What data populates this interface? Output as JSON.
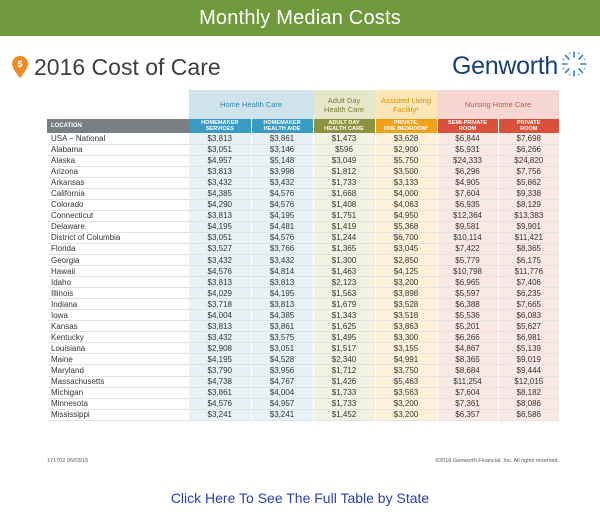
{
  "banner": {
    "title": "Monthly Median Costs"
  },
  "header": {
    "title": "2016 Cost of Care",
    "brand": "Genworth"
  },
  "table": {
    "groups": {
      "home": "Home Health Care",
      "adult": [
        "Adult Day",
        "Health Care"
      ],
      "assisted": [
        "Assisted Living",
        "Facility¹"
      ],
      "nursing": "Nursing Home Care"
    },
    "columns": {
      "location": "LOCATION",
      "homemaker": [
        "HOMEMAKER",
        "SERVICES"
      ],
      "aide": [
        "HOMEMAKER",
        "HEALTH AIDE"
      ],
      "adult": [
        "ADULT DAY",
        "HEALTH CARE"
      ],
      "assisted": [
        "PRIVATE,",
        "ONE BEDROOM¹"
      ],
      "semi": [
        "SEMI-PRIVATE",
        "ROOM"
      ],
      "private": [
        "PRIVATE",
        "ROOM"
      ]
    },
    "rows": [
      [
        "USA – National",
        "$3,813",
        "$3,861",
        "$1,473",
        "$3,628",
        "$6,844",
        "$7,698"
      ],
      [
        "Alabama",
        "$3,051",
        "$3,146",
        "$596",
        "$2,900",
        "$5,931",
        "$6,266"
      ],
      [
        "Alaska",
        "$4,957",
        "$5,148",
        "$3,049",
        "$5,750",
        "$24,333",
        "$24,820"
      ],
      [
        "Arizona",
        "$3,813",
        "$3,998",
        "$1,812",
        "$3,500",
        "$6,296",
        "$7,756"
      ],
      [
        "Arkansas",
        "$3,432",
        "$3,432",
        "$1,733",
        "$3,133",
        "$4,905",
        "$5,862"
      ],
      [
        "California",
        "$4,385",
        "$4,576",
        "$1,668",
        "$4,000",
        "$7,604",
        "$9,338"
      ],
      [
        "Colorado",
        "$4,290",
        "$4,576",
        "$1,408",
        "$4,063",
        "$6,935",
        "$8,129"
      ],
      [
        "Connecticut",
        "$3,813",
        "$4,195",
        "$1,751",
        "$4,950",
        "$12,364",
        "$13,383"
      ],
      [
        "Delaware",
        "$4,195",
        "$4,481",
        "$1,419",
        "$5,368",
        "$9,581",
        "$9,901"
      ],
      [
        "District of Columbia",
        "$3,051",
        "$4,576",
        "$1,244",
        "$6,700",
        "$10,114",
        "$11,421"
      ],
      [
        "Florida",
        "$3,527",
        "$3,766",
        "$1,365",
        "$3,045",
        "$7,422",
        "$8,365"
      ],
      [
        "Georgia",
        "$3,432",
        "$3,432",
        "$1,300",
        "$2,850",
        "$5,779",
        "$6,175"
      ],
      [
        "Hawaii",
        "$4,576",
        "$4,814",
        "$1,463",
        "$4,125",
        "$10,798",
        "$11,776"
      ],
      [
        "Idaho",
        "$3,813",
        "$3,813",
        "$2,123",
        "$3,200",
        "$6,965",
        "$7,406"
      ],
      [
        "Illinois",
        "$4,029",
        "$4,195",
        "$1,563",
        "$3,898",
        "$5,597",
        "$6,235"
      ],
      [
        "Indiana",
        "$3,718",
        "$3,813",
        "$1,679",
        "$3,528",
        "$6,388",
        "$7,665"
      ],
      [
        "Iowa",
        "$4,004",
        "$4,385",
        "$1,343",
        "$3,518",
        "$5,536",
        "$6,083"
      ],
      [
        "Kansas",
        "$3,813",
        "$3,861",
        "$1,625",
        "$3,863",
        "$5,201",
        "$5,627"
      ],
      [
        "Kentucky",
        "$3,432",
        "$3,575",
        "$1,495",
        "$3,300",
        "$6,266",
        "$6,981"
      ],
      [
        "Louisiana",
        "$2,908",
        "$3,051",
        "$1,517",
        "$3,155",
        "$4,867",
        "$5,139"
      ],
      [
        "Maine",
        "$4,195",
        "$4,528",
        "$2,340",
        "$4,991",
        "$8,365",
        "$9,019"
      ],
      [
        "Maryland",
        "$3,790",
        "$3,956",
        "$1,712",
        "$3,750",
        "$8,684",
        "$9,444"
      ],
      [
        "Massachusetts",
        "$4,738",
        "$4,767",
        "$1,426",
        "$5,463",
        "$11,254",
        "$12,015"
      ],
      [
        "Michigan",
        "$3,861",
        "$4,004",
        "$1,733",
        "$3,563",
        "$7,604",
        "$8,182"
      ],
      [
        "Minnesota",
        "$4,576",
        "$4,957",
        "$1,733",
        "$3,200",
        "$7,361",
        "$8,086"
      ],
      [
        "Mississippi",
        "$3,241",
        "$3,241",
        "$1,452",
        "$3,200",
        "$6,357",
        "$6,586"
      ]
    ]
  },
  "footer": {
    "id": "171702 06/03/16",
    "copyright": "©2016 Genworth Financial, Inc. All rights reserved."
  },
  "cta": {
    "label": "Click Here To See The Full Table by State"
  },
  "colors": {
    "banner": "#6f9a3b",
    "brand": "#1a3f79",
    "home": "#3a9bc2",
    "adult": "#8e9240",
    "assisted": "#f0a11a",
    "nursing": "#d9503c",
    "link": "#2a3fb0"
  }
}
